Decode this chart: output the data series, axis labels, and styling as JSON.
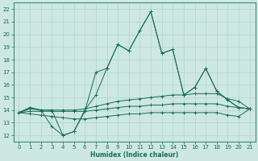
{
  "xlabel": "Humidex (Indice chaleur)",
  "bg_color": "#cce8e0",
  "grid_color": "#aacfc8",
  "line_color": "#1a6b5a",
  "xlim": [
    -0.5,
    21.5
  ],
  "ylim": [
    11.5,
    22.5
  ],
  "xticks": [
    0,
    1,
    2,
    3,
    4,
    5,
    6,
    7,
    8,
    9,
    10,
    11,
    12,
    13,
    14,
    15,
    16,
    17,
    18,
    19,
    20,
    21
  ],
  "yticks": [
    12,
    13,
    14,
    15,
    16,
    17,
    18,
    19,
    20,
    21,
    22
  ],
  "lines": [
    [
      13.8,
      14.2,
      14.0,
      14.0,
      12.0,
      12.3,
      13.9,
      17.0,
      17.3,
      19.2,
      18.7,
      20.3,
      21.8,
      18.5,
      18.8,
      15.2,
      15.8,
      17.3,
      15.5,
      14.8,
      14.2,
      14.1
    ],
    [
      13.8,
      14.2,
      14.0,
      12.7,
      12.0,
      12.3,
      14.0,
      15.2,
      17.3,
      19.2,
      18.7,
      20.3,
      21.8,
      18.5,
      18.8,
      15.2,
      15.8,
      17.3,
      15.5,
      14.8,
      14.2,
      14.1
    ],
    [
      13.8,
      14.1,
      14.0,
      14.0,
      14.0,
      14.0,
      14.1,
      14.3,
      14.5,
      14.7,
      14.8,
      14.9,
      15.0,
      15.1,
      15.2,
      15.2,
      15.3,
      15.3,
      15.3,
      14.9,
      14.7,
      14.1
    ],
    [
      13.8,
      13.9,
      13.9,
      13.9,
      13.9,
      13.9,
      13.9,
      14.0,
      14.1,
      14.2,
      14.3,
      14.3,
      14.4,
      14.4,
      14.5,
      14.5,
      14.5,
      14.5,
      14.5,
      14.3,
      14.2,
      14.1
    ],
    [
      13.8,
      13.7,
      13.6,
      13.5,
      13.4,
      13.3,
      13.3,
      13.4,
      13.5,
      13.6,
      13.7,
      13.7,
      13.8,
      13.8,
      13.8,
      13.8,
      13.8,
      13.8,
      13.8,
      13.6,
      13.5,
      14.1
    ]
  ],
  "ticksize": 5,
  "lw": 0.7,
  "xlabel_fontsize": 5.5
}
